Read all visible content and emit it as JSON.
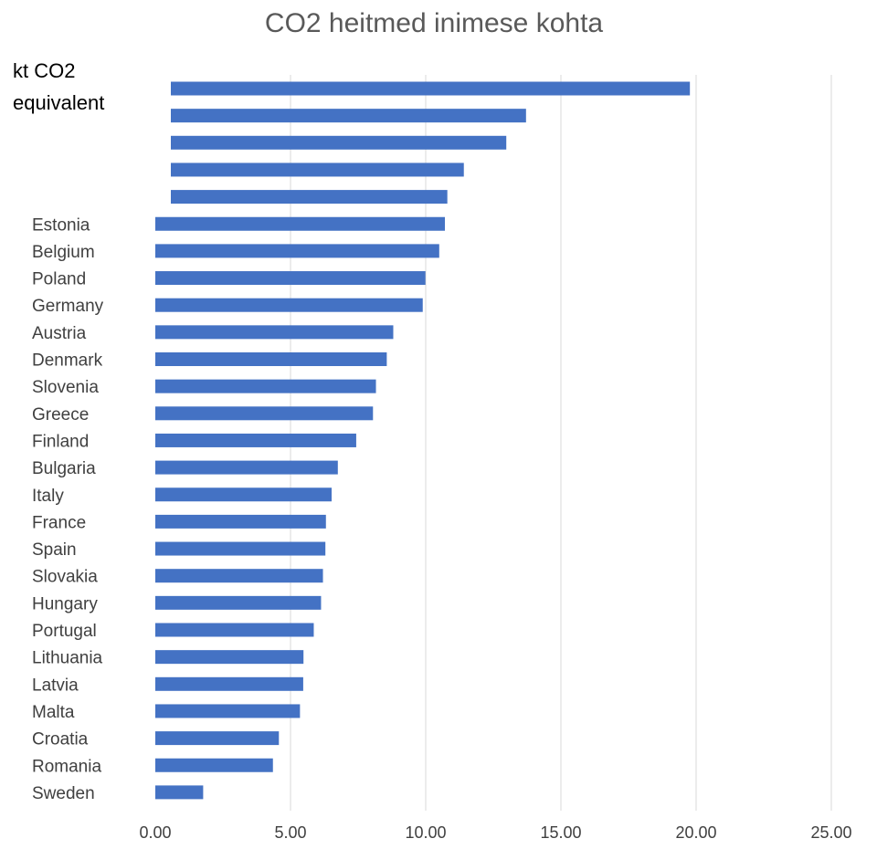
{
  "chart_data": {
    "type": "bar",
    "orientation": "horizontal",
    "title": "CO2 heitmed inimese kohta",
    "unit_label_lines": [
      "kt CO2",
      "equivalent"
    ],
    "categories": [
      "",
      "",
      "",
      "",
      "",
      "Estonia",
      "Belgium",
      "Poland",
      "Germany",
      "Austria",
      "Denmark",
      "Slovenia",
      "Greece",
      "Finland",
      "Bulgaria",
      "Italy",
      "France",
      "Spain",
      "Slovakia",
      "Hungary",
      "Portugal",
      "Lithuania",
      "Latvia",
      "Malta",
      "Croatia",
      "Romania",
      "Sweden"
    ],
    "values": [
      19.77,
      13.71,
      12.98,
      11.41,
      10.8,
      10.71,
      10.5,
      9.99,
      9.89,
      8.8,
      8.56,
      8.16,
      8.05,
      7.43,
      6.75,
      6.52,
      6.31,
      6.29,
      6.2,
      6.13,
      5.86,
      5.48,
      5.47,
      5.35,
      4.57,
      4.35,
      1.77
    ],
    "xlim": [
      0,
      25
    ],
    "xticks": [
      "0.00",
      "5.00",
      "10.00",
      "15.00",
      "20.00",
      "25.00"
    ],
    "grid": true,
    "legend": "none",
    "bar_color": "#4472c4"
  }
}
